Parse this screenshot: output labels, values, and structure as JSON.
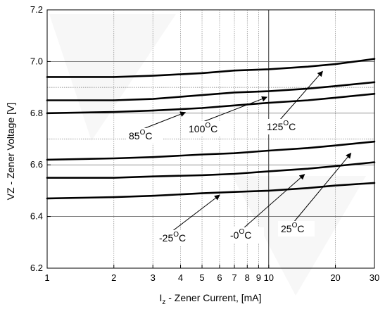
{
  "chart_data": {
    "type": "line",
    "xlabel_prefix": "I",
    "xlabel_sub": "z",
    "xlabel_rest": " - Zener Current, [mA]",
    "ylabel": "VZ -  Zener Voltage [V]",
    "xscale": "log",
    "xlim": [
      1,
      30
    ],
    "ylim": [
      6.2,
      7.2
    ],
    "x_ticks": [
      "1",
      "2",
      "3",
      "4",
      "5",
      "6",
      "7",
      "8",
      "9",
      "10",
      "20",
      "30"
    ],
    "x_tick_values": [
      1,
      2,
      3,
      4,
      5,
      6,
      7,
      8,
      9,
      10,
      20,
      30
    ],
    "y_ticks": [
      "6.2",
      "6.4",
      "6.6",
      "6.8",
      "7.0",
      "7.2"
    ],
    "y_tick_values": [
      6.2,
      6.4,
      6.6,
      6.8,
      7.0,
      7.2
    ],
    "grid": true,
    "series": [
      {
        "name": "125°C",
        "x": [
          1,
          2,
          3,
          5,
          7,
          10,
          15,
          20,
          30
        ],
        "values": [
          6.94,
          6.94,
          6.945,
          6.955,
          6.965,
          6.97,
          6.98,
          6.99,
          7.01
        ]
      },
      {
        "name": "100°C",
        "x": [
          1,
          2,
          3,
          5,
          7,
          10,
          15,
          20,
          30
        ],
        "values": [
          6.85,
          6.85,
          6.855,
          6.87,
          6.88,
          6.885,
          6.895,
          6.905,
          6.92
        ]
      },
      {
        "name": "85°C",
        "x": [
          1,
          2,
          3,
          5,
          7,
          10,
          15,
          20,
          30
        ],
        "values": [
          6.8,
          6.805,
          6.81,
          6.82,
          6.83,
          6.84,
          6.85,
          6.86,
          6.875
        ]
      },
      {
        "name": "25°C",
        "x": [
          1,
          2,
          3,
          5,
          7,
          10,
          15,
          20,
          30
        ],
        "values": [
          6.62,
          6.625,
          6.63,
          6.64,
          6.645,
          6.655,
          6.665,
          6.675,
          6.69
        ]
      },
      {
        "name": "-0°C",
        "x": [
          1,
          2,
          3,
          5,
          7,
          10,
          15,
          20,
          30
        ],
        "values": [
          6.55,
          6.55,
          6.555,
          6.56,
          6.565,
          6.575,
          6.585,
          6.595,
          6.61
        ]
      },
      {
        "name": "-25°C",
        "x": [
          1,
          2,
          3,
          5,
          7,
          10,
          15,
          20,
          30
        ],
        "values": [
          6.47,
          6.475,
          6.48,
          6.49,
          6.495,
          6.5,
          6.51,
          6.52,
          6.53
        ]
      }
    ],
    "annotations": [
      {
        "base": "85",
        "sup": "O",
        "unit": "C",
        "arrow_x": 4.2,
        "arrow_y": 6.803
      },
      {
        "base": "100",
        "sup": "O",
        "unit": "C",
        "arrow_x": 9.8,
        "arrow_y": 6.862
      },
      {
        "base": "125",
        "sup": "O",
        "unit": "C",
        "arrow_x": 17.5,
        "arrow_y": 6.962
      },
      {
        "base": "-25",
        "sup": "O",
        "unit": "C",
        "arrow_x": 6.0,
        "arrow_y": 6.483
      },
      {
        "base": "-0",
        "sup": "O",
        "unit": "C",
        "arrow_x": 14.5,
        "arrow_y": 6.563
      },
      {
        "base": "25",
        "sup": "O",
        "unit": "C",
        "arrow_x": 23.5,
        "arrow_y": 6.645
      }
    ]
  }
}
